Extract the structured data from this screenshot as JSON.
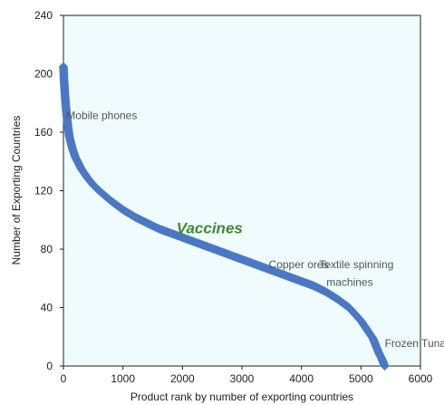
{
  "chart_data": {
    "type": "scatter",
    "xlabel": "Product rank by number of exporting countries",
    "ylabel": "Number of Exporting Countries",
    "xlim": [
      0,
      6000
    ],
    "ylim": [
      0,
      240
    ],
    "xticks": [
      "0",
      "1000",
      "2000",
      "3000",
      "4000",
      "5000",
      "6000"
    ],
    "yticks": [
      "0",
      "40",
      "80",
      "120",
      "160",
      "200",
      "240"
    ],
    "grid": false,
    "colors": {
      "plot_background": "#effbfd",
      "marker": "#4a78c4",
      "highlight_label": "#3f8a2c"
    },
    "series": [
      {
        "x": [
          0,
          10,
          20,
          40,
          60,
          80,
          100,
          150,
          200,
          300,
          400,
          500,
          600,
          800,
          1000,
          1200,
          1400,
          1600,
          1800,
          2000,
          2200,
          2400,
          2600,
          2800,
          3000,
          3200,
          3400,
          3600,
          3800,
          4000,
          4200,
          4400,
          4600,
          4800,
          5000,
          5100,
          5200,
          5250,
          5300,
          5350,
          5380,
          5400
        ],
        "y": [
          205,
          196,
          189,
          178,
          170,
          163,
          157,
          149,
          143,
          135,
          129,
          124,
          120,
          113,
          107,
          102,
          98,
          94,
          91,
          88,
          85,
          82,
          79,
          76,
          73,
          70,
          67,
          64,
          61,
          58,
          55,
          51,
          46,
          40,
          31,
          25,
          19,
          14,
          9,
          5,
          2,
          0
        ]
      }
    ],
    "annotations": [
      {
        "text": "Mobile phones",
        "x": 50,
        "y": 169,
        "highlight": false
      },
      {
        "text": "Vaccines",
        "x": 1900,
        "y": 91,
        "highlight": true
      },
      {
        "text": "Copper ores",
        "x": 3450,
        "y": 67,
        "highlight": false
      },
      {
        "text": "Textile spinning",
        "x": 4300,
        "y": 67,
        "highlight": false
      },
      {
        "text": "machines",
        "x": 4420,
        "y": 55,
        "highlight": false
      },
      {
        "text": "Frozen Tuna",
        "x": 5400,
        "y": 13,
        "highlight": false
      }
    ]
  }
}
